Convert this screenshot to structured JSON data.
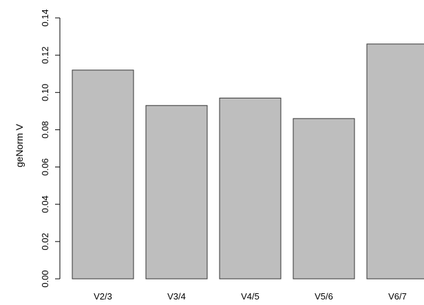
{
  "chart_data": {
    "type": "bar",
    "title": "",
    "xlabel": "",
    "ylabel": "geNorm V",
    "categories": [
      "V2/3",
      "V3/4",
      "V4/5",
      "V5/6",
      "V6/7"
    ],
    "values": [
      0.112,
      0.093,
      0.097,
      0.086,
      0.126
    ],
    "ylim": [
      0,
      0.14
    ],
    "yticks": [
      "0.00",
      "0.02",
      "0.04",
      "0.06",
      "0.08",
      "0.10",
      "0.12",
      "0.14"
    ],
    "grid": false,
    "legend": "none",
    "bar_color": "#bebebe",
    "bar_edge_color": "#333333"
  }
}
